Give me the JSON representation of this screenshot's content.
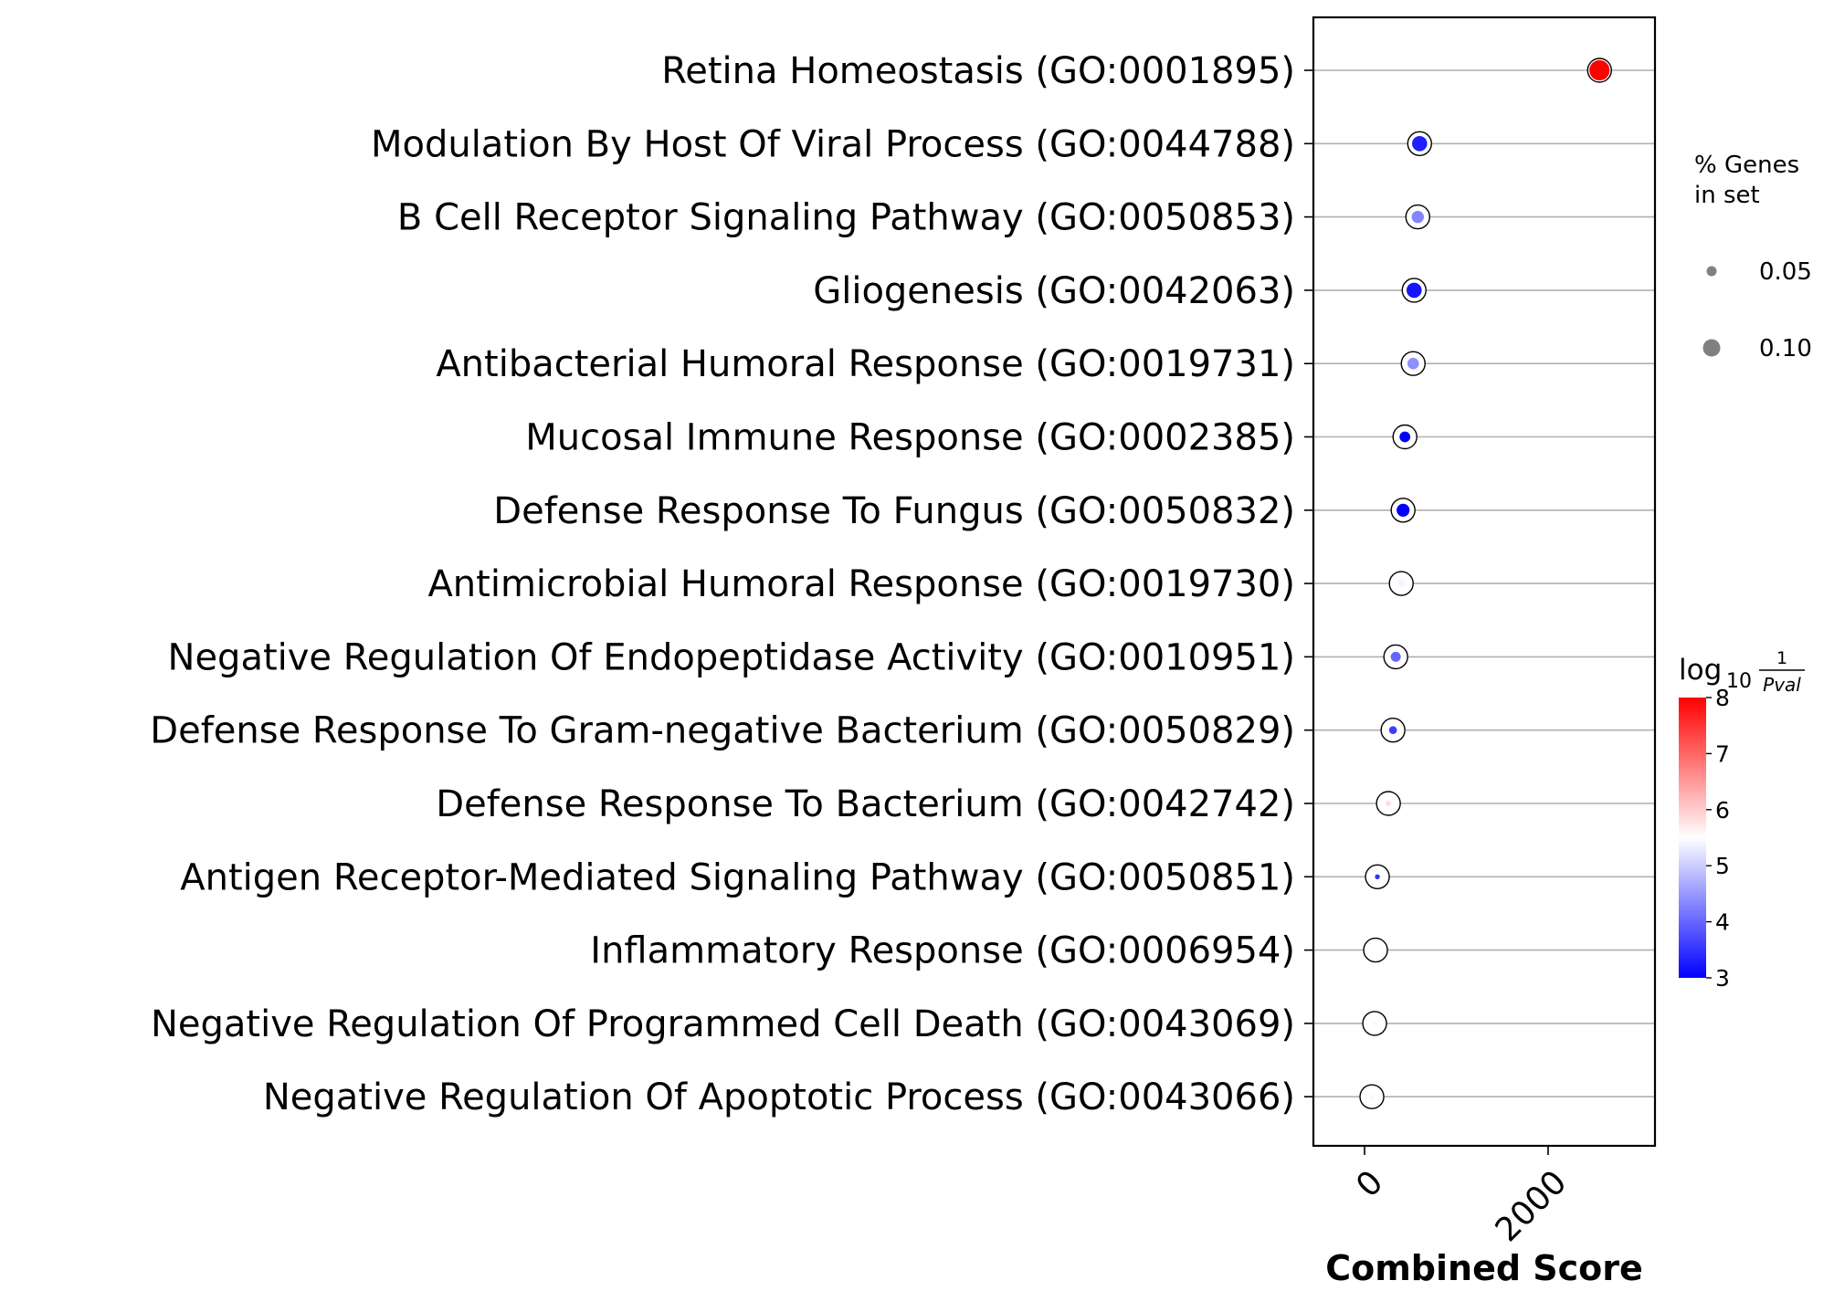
{
  "chart_data": {
    "type": "scatter",
    "xlabel": "Combined Score",
    "x_ticks": [
      0,
      2000
    ],
    "xlim": [
      -550,
      3200
    ],
    "categories": [
      "Retina Homeostasis (GO:0001895)",
      "Modulation By Host Of Viral Process (GO:0044788)",
      "B Cell Receptor Signaling Pathway (GO:0050853)",
      "Gliogenesis (GO:0042063)",
      "Antibacterial Humoral Response (GO:0019731)",
      "Mucosal Immune Response (GO:0002385)",
      "Defense Response To Fungus (GO:0050832)",
      "Antimicrobial Humoral Response (GO:0019730)",
      "Negative Regulation Of Endopeptidase Activity (GO:0010951)",
      "Defense Response To Gram-negative Bacterium (GO:0050829)",
      "Defense Response To Bacterium (GO:0042742)",
      "Antigen Receptor-Mediated Signaling Pathway (GO:0050851)",
      "Inflammatory Response (GO:0006954)",
      "Negative Regulation Of Programmed Cell Death (GO:0043069)",
      "Negative Regulation Of Apoptotic Process (GO:0043066)"
    ],
    "combined_score": [
      2560,
      600,
      580,
      540,
      530,
      440,
      420,
      400,
      340,
      310,
      260,
      140,
      120,
      110,
      80
    ],
    "neg_log10_pval": [
      8.0,
      3.3,
      4.3,
      3.2,
      4.4,
      3.0,
      3.0,
      5.4,
      4.0,
      3.6,
      5.8,
      3.5,
      5.5,
      5.6,
      5.6
    ],
    "genes_fraction": [
      0.12,
      0.085,
      0.065,
      0.085,
      0.06,
      0.055,
      0.07,
      0.035,
      0.05,
      0.035,
      0.02,
      0.015,
      0.012,
      0.01,
      0.01
    ],
    "size_legend": {
      "title_line1": "% Genes",
      "title_line2": "in set",
      "entries": [
        {
          "label": "0.05",
          "value": 0.05
        },
        {
          "label": "0.10",
          "value": 0.1
        }
      ]
    },
    "colorbar": {
      "title_main": "log",
      "title_sub": "10",
      "title_num": "1",
      "title_den": "Pval",
      "min": 3,
      "max": 8,
      "ticks": [
        "3",
        "4",
        "5",
        "6",
        "7",
        "8"
      ],
      "colormap": "bwr",
      "low_color": "#0000ff",
      "mid_color": "#ffffff",
      "high_color": "#ff0000"
    },
    "grid": "horizontal",
    "legend_placement": "right"
  }
}
